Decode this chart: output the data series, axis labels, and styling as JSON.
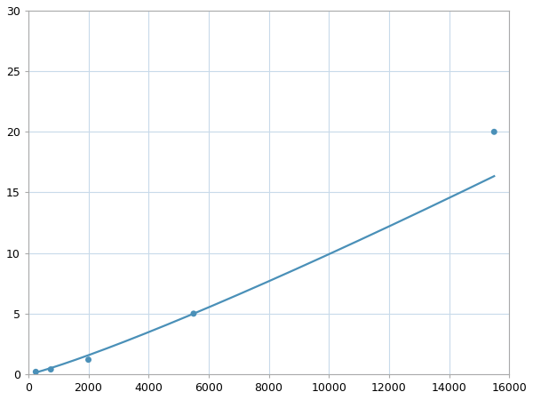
{
  "x": [
    250,
    750,
    2000,
    5500,
    15500
  ],
  "y": [
    0.2,
    0.4,
    1.2,
    5.0,
    20.0
  ],
  "line_color": "#4a90b8",
  "marker_color": "#4a90b8",
  "marker_size": 5,
  "line_width": 1.6,
  "xlim": [
    0,
    16000
  ],
  "ylim": [
    0,
    30
  ],
  "xticks": [
    0,
    2000,
    4000,
    6000,
    8000,
    10000,
    12000,
    14000,
    16000
  ],
  "yticks": [
    0,
    5,
    10,
    15,
    20,
    25,
    30
  ],
  "grid_color": "#c8daea",
  "background_color": "#ffffff",
  "spine_color": "#aaaaaa"
}
